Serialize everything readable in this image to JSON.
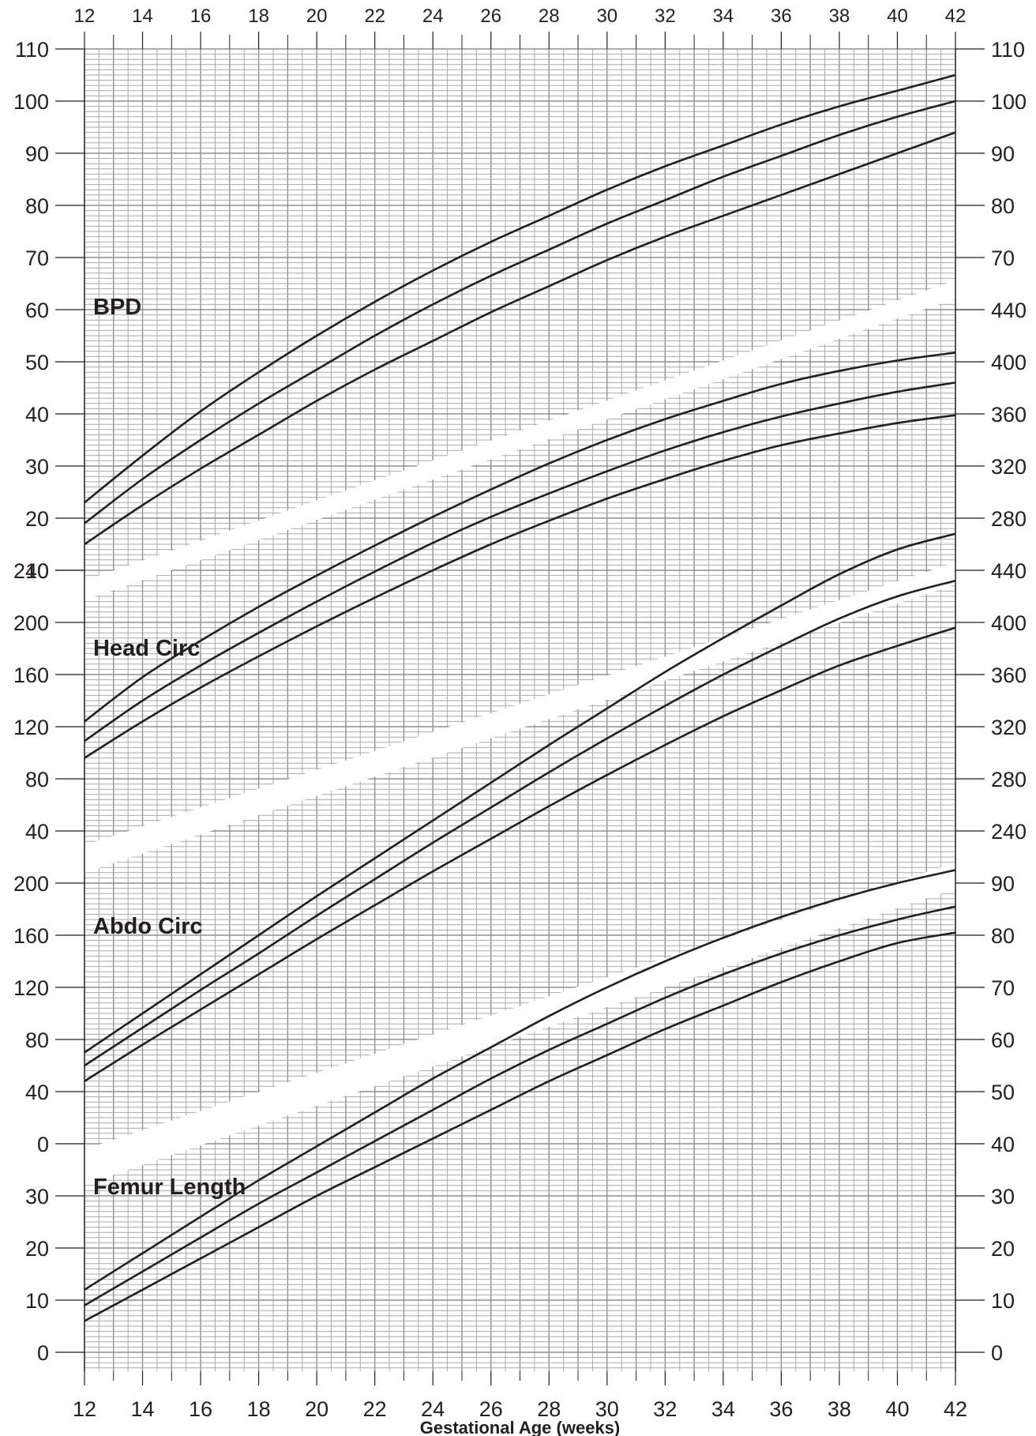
{
  "chart_data": {
    "type": "line",
    "xlabel": "Gestational Age (weeks)",
    "xlim": [
      12,
      42
    ],
    "x_ticks": [
      "12",
      "14",
      "16",
      "18",
      "20",
      "22",
      "24",
      "26",
      "28",
      "30",
      "32",
      "34",
      "36",
      "38",
      "40",
      "42"
    ],
    "grid": "on",
    "x": [
      12,
      14,
      16,
      18,
      20,
      22,
      24,
      26,
      28,
      30,
      32,
      34,
      36,
      38,
      40,
      42
    ],
    "panels": [
      {
        "label": "BPD",
        "left_ticks": [
          "110",
          "100",
          "90",
          "80",
          "70",
          "60",
          "50",
          "40",
          "30",
          "20",
          "10"
        ],
        "right_ticks": [
          "110",
          "100",
          "90",
          "80",
          "70"
        ],
        "ylim": [
          10,
          110
        ],
        "series": [
          {
            "values": [
              23,
              32,
              40.5,
              48,
              55,
              61.5,
              67.5,
              73,
              78,
              83,
              87.5,
              91.5,
              95.5,
              99,
              102,
              105
            ]
          },
          {
            "values": [
              19,
              27.5,
              35,
              42,
              48.5,
              55,
              61,
              66.5,
              71.5,
              76.5,
              81,
              85.5,
              89.5,
              93.5,
              97,
              100
            ]
          },
          {
            "values": [
              15,
              22.5,
              29.5,
              36,
              42.5,
              48.5,
              54,
              59.5,
              64.5,
              69.5,
              74,
              78,
              82,
              86,
              90,
              94
            ]
          }
        ]
      },
      {
        "label": "Head Circ",
        "left_ticks": [
          "240",
          "200",
          "160",
          "120",
          "80",
          "40"
        ],
        "right_ticks": [
          "440",
          "400",
          "360",
          "320",
          "280"
        ],
        "ylim": [
          240,
          440
        ],
        "series": [
          {
            "values": [
              84,
              118,
              146,
              172,
              196,
              219,
              241,
              262,
              282,
              300,
              316,
              330,
              343,
              353,
              361,
              367
            ]
          },
          {
            "values": [
              69,
              100,
              127,
              152,
              176,
              199,
              221,
              241,
              259,
              276,
              292,
              306,
              318,
              328,
              337,
              344
            ]
          },
          {
            "values": [
              56,
              84,
              110,
              134,
              157,
              179,
              200,
              220,
              238,
              255,
              270,
              284,
              296,
              305,
              313,
              319
            ]
          }
        ]
      },
      {
        "label": "Abdo Circ",
        "left_ticks": [
          "200",
          "160",
          "120",
          "80",
          "40",
          "0"
        ],
        "right_ticks": [
          "440",
          "400",
          "360",
          "320",
          "280",
          "240"
        ],
        "ylim": [
          0,
          200
        ],
        "series": [
          {
            "values": [
              70,
              100,
              130,
              160,
              190,
              219,
              248,
              277,
              306,
              334,
              362,
              388,
              413,
              437,
              456,
              468
            ]
          },
          {
            "values": [
              60,
              89,
              118,
              146,
              175,
              203,
              231,
              258,
              285,
              311,
              336,
              360,
              382,
              403,
              420,
              432
            ]
          },
          {
            "values": [
              48,
              76,
              103,
              130,
              157,
              183,
              209,
              234,
              259,
              283,
              306,
              328,
              348,
              367,
              382,
              396
            ]
          }
        ]
      },
      {
        "label": "Femur Length",
        "left_ticks": [
          "30",
          "20",
          "10",
          "0"
        ],
        "right_ticks": [
          "90",
          "80",
          "70",
          "60",
          "50",
          "40",
          "30",
          "20",
          "10",
          "0"
        ],
        "ylim": [
          0,
          90
        ],
        "series": [
          {
            "values": [
              12,
              19,
              26,
              33,
              39.5,
              46,
              52.5,
              58.5,
              64.5,
              70,
              75,
              79.5,
              83.5,
              87,
              90,
              92.5
            ]
          },
          {
            "values": [
              9,
              15.5,
              22,
              28.5,
              34.5,
              40.5,
              46.5,
              52.5,
              58,
              63,
              68,
              72.5,
              76.5,
              80,
              83,
              85.5
            ]
          },
          {
            "values": [
              6,
              12,
              18,
              24,
              30,
              35.5,
              41,
              46.5,
              52,
              57,
              62,
              66.5,
              71,
              75,
              78.5,
              80.5
            ]
          }
        ]
      }
    ]
  }
}
